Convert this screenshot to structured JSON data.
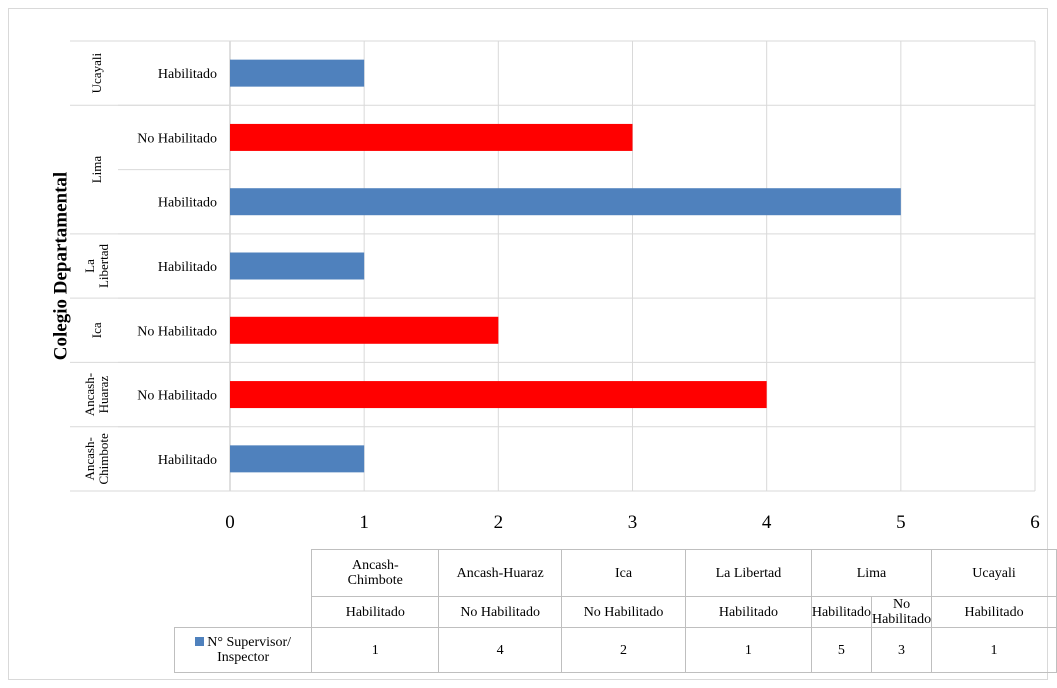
{
  "chart_data": {
    "type": "bar",
    "orientation": "horizontal",
    "ylabel": "Colegio Departamental",
    "xlabel": "",
    "xlim": [
      0,
      6
    ],
    "x_ticks": [
      "0",
      "1",
      "2",
      "3",
      "4",
      "5",
      "6"
    ],
    "grid": true,
    "groups": [
      {
        "name": "Ancash-Chimbote",
        "axis_lines": [
          "Ancash-",
          "Chimbote"
        ],
        "table_lines": [
          "Ancash-",
          "Chimbote"
        ]
      },
      {
        "name": "Ancash-Huaraz",
        "axis_lines": [
          "Ancash-",
          "Huaraz"
        ],
        "table_lines": [
          "Ancash-Huaraz"
        ]
      },
      {
        "name": "Ica",
        "axis_lines": [
          "Ica"
        ],
        "table_lines": [
          "Ica"
        ]
      },
      {
        "name": "La Libertad",
        "axis_lines": [
          "La",
          "Libertad"
        ],
        "table_lines": [
          "La Libertad"
        ]
      },
      {
        "name": "Lima",
        "axis_lines": [
          "Lima"
        ],
        "table_lines": [
          "Lima"
        ]
      },
      {
        "name": "Ucayali",
        "axis_lines": [
          "Ucayali"
        ],
        "table_lines": [
          "Ucayali"
        ]
      }
    ],
    "categories": [
      {
        "group": 0,
        "label": "Habilitado",
        "value": 1,
        "color": "#4f81bd"
      },
      {
        "group": 1,
        "label": "No Habilitado",
        "value": 4,
        "color": "#ff0000"
      },
      {
        "group": 2,
        "label": "No Habilitado",
        "value": 2,
        "color": "#ff0000"
      },
      {
        "group": 3,
        "label": "Habilitado",
        "value": 1,
        "color": "#4f81bd"
      },
      {
        "group": 4,
        "label": "Habilitado",
        "value": 5,
        "color": "#4f81bd"
      },
      {
        "group": 4,
        "label": "No Habilitado",
        "value": 3,
        "color": "#ff0000"
      },
      {
        "group": 5,
        "label": "Habilitado",
        "value": 1,
        "color": "#4f81bd"
      }
    ],
    "series": [
      {
        "name": "N° Supervisor/ Inspector",
        "name_lines": [
          "N° Supervisor/",
          "Inspector"
        ],
        "values": [
          1,
          4,
          2,
          1,
          5,
          3,
          1
        ],
        "legend_color": "#4f81bd"
      }
    ],
    "legend_placement": "data-table"
  }
}
